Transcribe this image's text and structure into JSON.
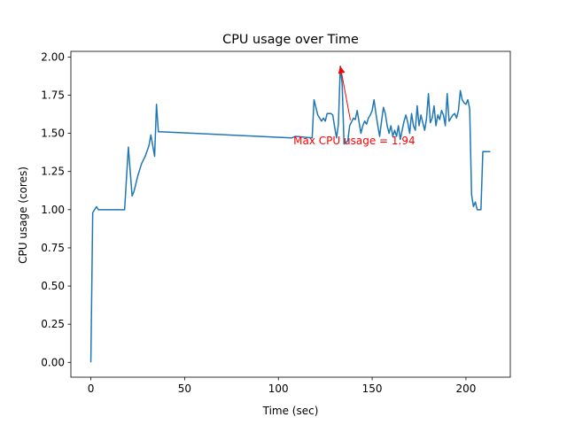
{
  "chart_data": {
    "type": "line",
    "title": "CPU usage over Time",
    "xlabel": "Time (sec)",
    "ylabel": "CPU usage (cores)",
    "xlim": [
      -10.65,
      223.65
    ],
    "ylim": [
      -0.097,
      2.037
    ],
    "xticks": [
      0,
      50,
      100,
      150,
      200
    ],
    "xtick_labels": [
      "0",
      "50",
      "100",
      "150",
      "200"
    ],
    "yticks": [
      0.0,
      0.25,
      0.5,
      0.75,
      1.0,
      1.25,
      1.5,
      1.75,
      2.0
    ],
    "ytick_labels": [
      "0.00",
      "0.25",
      "0.50",
      "0.75",
      "1.00",
      "1.25",
      "1.50",
      "1.75",
      "2.00"
    ],
    "grid": false,
    "line_color": "#1f77b4",
    "series": [
      {
        "name": "",
        "x": [
          0,
          1,
          3,
          4,
          5,
          8,
          10,
          12,
          14,
          16,
          18,
          20,
          22,
          23,
          25,
          27,
          29,
          31,
          32,
          33,
          34,
          35,
          36,
          38,
          107,
          109,
          118,
          119,
          121,
          123,
          124,
          125,
          126,
          128,
          129,
          130,
          131,
          132,
          133,
          134,
          135,
          137,
          138,
          140,
          141,
          142,
          144,
          145,
          146,
          147,
          148,
          149,
          150,
          151,
          152,
          153,
          154,
          155,
          156,
          157,
          158,
          159,
          160,
          161,
          162,
          163,
          164,
          165,
          166,
          167,
          168,
          169,
          170,
          171,
          172,
          173,
          174,
          175,
          176,
          177,
          178,
          179,
          180,
          181,
          182,
          183,
          184,
          185,
          186,
          187,
          188,
          189,
          190,
          191,
          192,
          193,
          194,
          195,
          196,
          197,
          198,
          199,
          200,
          201,
          202,
          203,
          204,
          205,
          206,
          207,
          208,
          209,
          210,
          211,
          212,
          213
        ],
        "y": [
          0.0,
          0.98,
          1.02,
          1.0,
          1.0,
          1.0,
          1.0,
          1.0,
          1.0,
          1.0,
          1.0,
          1.41,
          1.09,
          1.12,
          1.22,
          1.3,
          1.35,
          1.42,
          1.49,
          1.42,
          1.35,
          1.69,
          1.51,
          1.51,
          1.47,
          1.48,
          1.47,
          1.72,
          1.62,
          1.58,
          1.6,
          1.58,
          1.63,
          1.63,
          1.62,
          1.54,
          1.47,
          1.56,
          1.94,
          1.82,
          1.43,
          1.45,
          1.55,
          1.6,
          1.59,
          1.65,
          1.5,
          1.55,
          1.58,
          1.56,
          1.6,
          1.62,
          1.65,
          1.72,
          1.63,
          1.55,
          1.48,
          1.58,
          1.67,
          1.63,
          1.55,
          1.5,
          1.55,
          1.48,
          1.52,
          1.48,
          1.55,
          1.46,
          1.52,
          1.58,
          1.62,
          1.57,
          1.5,
          1.63,
          1.55,
          1.52,
          1.68,
          1.55,
          1.62,
          1.57,
          1.52,
          1.6,
          1.76,
          1.57,
          1.6,
          1.68,
          1.55,
          1.62,
          1.59,
          1.65,
          1.62,
          1.55,
          1.76,
          1.58,
          1.6,
          1.62,
          1.63,
          1.6,
          1.65,
          1.78,
          1.72,
          1.7,
          1.69,
          1.72,
          1.66,
          1.1,
          1.02,
          1.05,
          1.0,
          1.0,
          1.0,
          1.38,
          1.38,
          1.38,
          1.38,
          1.38
        ]
      }
    ],
    "annotation": {
      "text": "Max CPU usage = 1.94",
      "color": "#ff0000",
      "xy": [
        133,
        1.94
      ],
      "xytext": [
        108,
        1.45
      ]
    }
  }
}
